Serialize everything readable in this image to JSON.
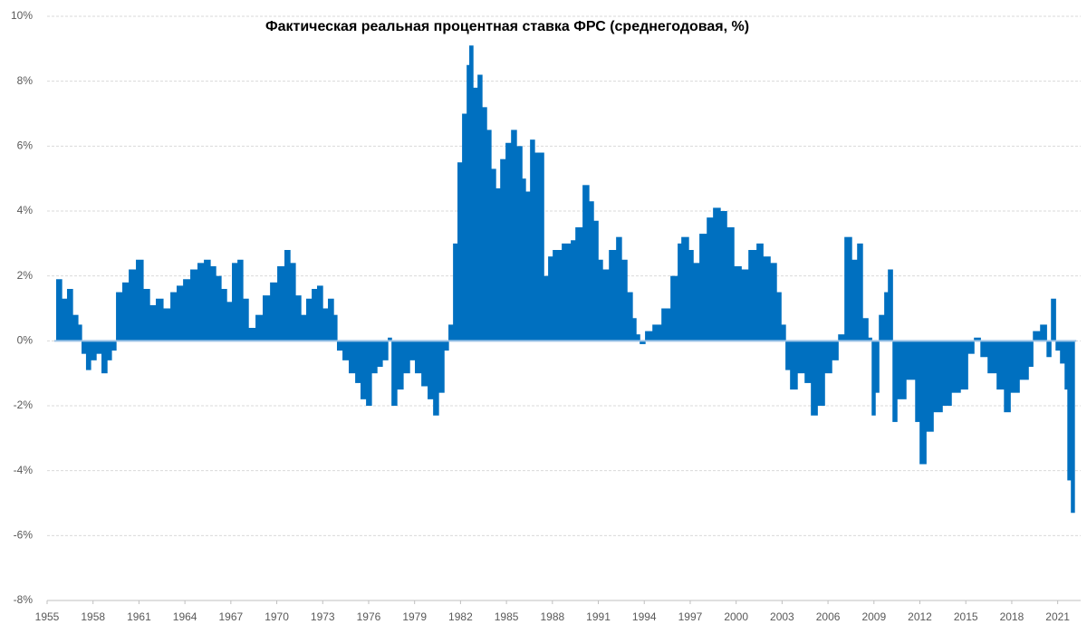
{
  "chart_data": {
    "type": "bar",
    "title": "Фактическая  реальная процентная ставка ФРС (среднегодовая, %)",
    "color": "#0070c0",
    "grid": true,
    "xlim": [
      1955,
      2022.5
    ],
    "xticks": [
      1955,
      1958,
      1961,
      1964,
      1967,
      1970,
      1973,
      1976,
      1979,
      1982,
      1985,
      1988,
      1991,
      1994,
      1997,
      2000,
      2003,
      2006,
      2009,
      2012,
      2015,
      2018,
      2021
    ],
    "ylim": [
      -8,
      10
    ],
    "yticks": [
      {
        "value": -8,
        "label": "-8%"
      },
      {
        "value": -6,
        "label": "-6%"
      },
      {
        "value": -4,
        "label": "-4%"
      },
      {
        "value": -2,
        "label": "-2%"
      },
      {
        "value": 0,
        "label": "0%"
      },
      {
        "value": 2,
        "label": "2%"
      },
      {
        "value": 4,
        "label": "4%"
      },
      {
        "value": 6,
        "label": "6%"
      },
      {
        "value": 8,
        "label": "8%"
      },
      {
        "value": 10,
        "label": "10%"
      }
    ],
    "x": [
      1955.59,
      1955.95,
      1956.3,
      1956.66,
      1957.01,
      1957.25,
      1957.54,
      1957.84,
      1958.2,
      1958.55,
      1958.91,
      1959.2,
      1959.5,
      1959.91,
      1960.33,
      1960.8,
      1961.27,
      1961.69,
      1962.1,
      1962.57,
      1963.05,
      1963.46,
      1963.88,
      1964.35,
      1964.82,
      1965.24,
      1965.65,
      1966.01,
      1966.36,
      1966.72,
      1967.07,
      1967.43,
      1967.78,
      1968.14,
      1968.61,
      1969.08,
      1969.56,
      1970.03,
      1970.5,
      1970.86,
      1971.21,
      1971.57,
      1971.92,
      1972.28,
      1972.63,
      1972.99,
      1973.34,
      1973.7,
      1973.93,
      1974.29,
      1974.7,
      1975.12,
      1975.47,
      1975.83,
      1976.18,
      1976.54,
      1976.89,
      1977.25,
      1977.49,
      1977.84,
      1978.25,
      1978.67,
      1979.02,
      1979.44,
      1979.85,
      1980.21,
      1980.56,
      1980.92,
      1981.21,
      1981.51,
      1981.8,
      1982.1,
      1982.4,
      1982.57,
      1982.81,
      1983.11,
      1983.4,
      1983.7,
      1983.99,
      1984.29,
      1984.59,
      1984.94,
      1985.3,
      1985.65,
      1986.01,
      1986.24,
      1986.54,
      1986.83,
      1987.31,
      1987.43,
      1987.72,
      1988.02,
      1988.61,
      1989.2,
      1989.5,
      1989.97,
      1990.38,
      1990.68,
      1990.98,
      1991.27,
      1991.69,
      1992.16,
      1992.51,
      1992.87,
      1993.22,
      1993.46,
      1993.7,
      1994.05,
      1994.53,
      1995.12,
      1995.71,
      1996.18,
      1996.42,
      1996.89,
      1997.19,
      1997.6,
      1998.08,
      1998.49,
      1998.96,
      1999.38,
      1999.85,
      2000.33,
      2000.8,
      2001.33,
      2001.75,
      2002.22,
      2002.63,
      2002.93,
      2003.22,
      2003.52,
      2003.99,
      2004.47,
      2004.88,
      2005.3,
      2005.77,
      2006.24,
      2006.66,
      2007.07,
      2007.54,
      2007.9,
      2008.25,
      2008.61,
      2008.85,
      2009.08,
      2009.32,
      2009.67,
      2009.91,
      2010.21,
      2010.5,
      2011.09,
      2011.69,
      2011.98,
      2012.4,
      2012.87,
      2013.46,
      2014.05,
      2014.64,
      2015.12,
      2015.53,
      2015.95,
      2016.42,
      2017.01,
      2017.49,
      2017.9,
      2018.49,
      2019.08,
      2019.38,
      2019.85,
      2020.27,
      2020.56,
      2020.86,
      2021.15,
      2021.45,
      2021.63,
      2021.86
    ],
    "values": [
      1.9,
      1.3,
      1.6,
      0.8,
      0.5,
      -0.4,
      -0.9,
      -0.6,
      -0.4,
      -1.0,
      -0.6,
      -0.3,
      1.5,
      1.8,
      2.2,
      2.5,
      1.6,
      1.1,
      1.3,
      1.0,
      1.5,
      1.7,
      1.9,
      2.2,
      2.4,
      2.5,
      2.3,
      2.0,
      1.6,
      1.2,
      2.4,
      2.5,
      1.3,
      0.4,
      0.8,
      1.4,
      1.8,
      2.3,
      2.8,
      2.4,
      1.4,
      0.8,
      1.3,
      1.6,
      1.7,
      1.0,
      1.3,
      0.8,
      -0.3,
      -0.6,
      -1.0,
      -1.3,
      -1.8,
      -2.0,
      -1.0,
      -0.8,
      -0.6,
      0.1,
      -2.0,
      -1.5,
      -1.0,
      -0.6,
      -1.0,
      -1.4,
      -1.8,
      -2.3,
      -1.6,
      -0.3,
      0.5,
      3.0,
      5.5,
      7.0,
      8.5,
      9.1,
      7.8,
      8.2,
      7.2,
      6.5,
      5.3,
      4.7,
      5.6,
      6.1,
      6.5,
      6.0,
      5.0,
      4.6,
      6.2,
      5.8,
      5.8,
      2.0,
      2.6,
      2.8,
      3.0,
      3.1,
      3.5,
      4.8,
      4.3,
      3.7,
      2.5,
      2.2,
      2.8,
      3.2,
      2.5,
      1.5,
      0.7,
      0.2,
      -0.1,
      0.3,
      0.5,
      1.0,
      2.0,
      3.0,
      3.2,
      2.8,
      2.4,
      3.3,
      3.8,
      4.1,
      4.0,
      3.5,
      2.3,
      2.2,
      2.8,
      3.0,
      2.6,
      2.4,
      1.5,
      0.5,
      -0.9,
      -1.5,
      -1.0,
      -1.3,
      -2.3,
      -2.0,
      -1.0,
      -0.6,
      0.2,
      3.2,
      2.5,
      3.0,
      0.7,
      0.1,
      -2.3,
      -1.6,
      0.8,
      1.5,
      2.2,
      -2.5,
      -1.8,
      -1.2,
      -2.5,
      -3.8,
      -2.8,
      -2.2,
      -2.0,
      -1.6,
      -1.5,
      -0.4,
      0.1,
      -0.5,
      -1.0,
      -1.5,
      -2.2,
      -1.6,
      -1.2,
      -0.8,
      0.3,
      0.5,
      -0.5,
      1.3,
      -0.3,
      -0.7,
      -1.5,
      -4.3,
      -5.3
    ]
  }
}
